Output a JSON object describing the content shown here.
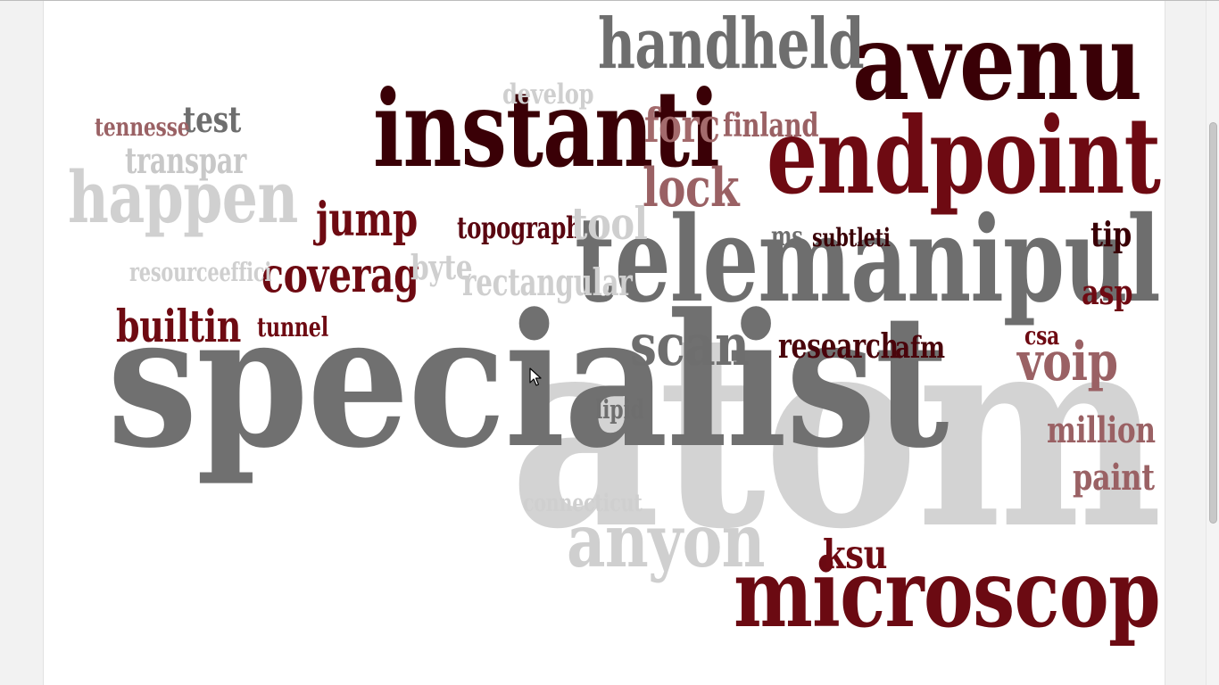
{
  "window": {
    "background_color": "#f2f2f2",
    "canvas_color": "#ffffff"
  },
  "word_cloud": {
    "palette": {
      "dark_maroon": "#3a0006",
      "maroon": "#6b0a12",
      "red": "#7a0e16",
      "rose": "#9a6164",
      "gray": "#6e6e6e",
      "light_gray": "#cfcfcf"
    },
    "words": [
      {
        "text": "atom",
        "color": "#d3d3d3"
      },
      {
        "text": "specialist",
        "color": "#707070"
      },
      {
        "text": "telemanipul",
        "color": "#6e6e6e"
      },
      {
        "text": "microscop",
        "color": "#6b0a12"
      },
      {
        "text": "endpoint",
        "color": "#6e0a12"
      },
      {
        "text": "avenu",
        "color": "#3a0006"
      },
      {
        "text": "instanti",
        "color": "#3a0006"
      },
      {
        "text": "handheld",
        "color": "#6e6e6e"
      },
      {
        "text": "anyon",
        "color": "#cfcfcf"
      },
      {
        "text": "happen",
        "color": "#d0d0d0"
      },
      {
        "text": "lock",
        "color": "#9a6164"
      },
      {
        "text": "forc",
        "color": "#a36a6c"
      },
      {
        "text": "scan",
        "color": "#6e6e6e"
      },
      {
        "text": "voip",
        "color": "#9a6164"
      },
      {
        "text": "coverag",
        "color": "#6e0a12"
      },
      {
        "text": "jump",
        "color": "#6e0a12"
      },
      {
        "text": "builtin",
        "color": "#6e0a12"
      },
      {
        "text": "research",
        "color": "#4a040b"
      },
      {
        "text": "rectangular",
        "color": "#cfcfcf"
      },
      {
        "text": "topograph",
        "color": "#5a0610"
      },
      {
        "text": "tool",
        "color": "#cfcfcf"
      },
      {
        "text": "transpar",
        "color": "#c8c8c8"
      },
      {
        "text": "test",
        "color": "#6e6e6e"
      },
      {
        "text": "tennesse",
        "color": "#9a6164"
      },
      {
        "text": "develop",
        "color": "#cfcfcf"
      },
      {
        "text": "finland",
        "color": "#9a6164"
      },
      {
        "text": "resourceeffici",
        "color": "#cfcfcf"
      },
      {
        "text": "byte",
        "color": "#cfcfcf"
      },
      {
        "text": "tunnel",
        "color": "#6e0a12"
      },
      {
        "text": "lipid",
        "color": "#6e6e6e"
      },
      {
        "text": "connecticut",
        "color": "#cfcfcf"
      },
      {
        "text": "ksu",
        "color": "#6e0a12"
      },
      {
        "text": "million",
        "color": "#9a6164"
      },
      {
        "text": "paint",
        "color": "#9a6164"
      },
      {
        "text": "tip",
        "color": "#3a0006"
      },
      {
        "text": "asp",
        "color": "#6e0a12"
      },
      {
        "text": "csa",
        "color": "#6e0a12"
      },
      {
        "text": "afm",
        "color": "#4a040b"
      },
      {
        "text": "ms",
        "color": "#6e6e6e"
      },
      {
        "text": "subtleti",
        "color": "#3a0006"
      }
    ]
  },
  "cursor": {
    "icon": "arrow-pointer-icon"
  }
}
